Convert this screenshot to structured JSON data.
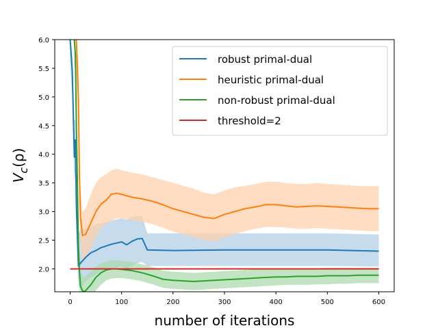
{
  "chart_data": {
    "type": "line",
    "xlabel": "number of iterations",
    "ylabel": "V_c(ρ)",
    "ylabel_main": "V",
    "ylabel_sub": "c",
    "ylabel_arg": "(ρ)",
    "xlim": [
      -30,
      630
    ],
    "ylim": [
      1.6,
      6.0
    ],
    "xticks": [
      0,
      100,
      200,
      300,
      400,
      500,
      600
    ],
    "yticks": [
      2.0,
      2.5,
      3.0,
      3.5,
      4.0,
      4.5,
      5.0,
      5.5,
      6.0
    ],
    "xtick_labels": [
      "0",
      "100",
      "200",
      "300",
      "400",
      "500",
      "600"
    ],
    "ytick_labels": [
      "2.0",
      "2.5",
      "3.0",
      "3.5",
      "4.0",
      "4.5",
      "5.0",
      "5.5",
      "6.0"
    ],
    "grid": false,
    "legend_position": "top-right",
    "series": [
      {
        "name": "robust primal-dual",
        "color": "#1f77b4",
        "band_color": "#aecde6",
        "x": [
          0,
          4,
          8,
          10,
          12,
          16,
          20,
          30,
          40,
          50,
          60,
          70,
          80,
          90,
          100,
          110,
          120,
          130,
          140,
          150,
          200,
          300,
          400,
          500,
          600
        ],
        "y": [
          6.0,
          5.45,
          3.95,
          4.25,
          3.1,
          2.05,
          2.1,
          2.2,
          2.28,
          2.32,
          2.37,
          2.4,
          2.43,
          2.45,
          2.47,
          2.42,
          2.48,
          2.52,
          2.53,
          2.33,
          2.32,
          2.33,
          2.33,
          2.33,
          2.31
        ],
        "band_upper": [
          6.0,
          5.8,
          4.6,
          4.6,
          3.8,
          2.6,
          2.7,
          2.7,
          2.75,
          2.78,
          2.8,
          2.82,
          2.85,
          2.86,
          2.88,
          2.86,
          2.9,
          2.92,
          2.92,
          2.62,
          2.62,
          2.62,
          2.62,
          2.62,
          2.6
        ],
        "band_lower": [
          5.6,
          5.0,
          3.5,
          3.7,
          2.6,
          1.7,
          1.65,
          1.78,
          1.85,
          1.9,
          1.95,
          1.98,
          2.0,
          2.02,
          2.04,
          2.0,
          2.05,
          2.1,
          2.12,
          2.05,
          2.05,
          2.05,
          2.05,
          2.05,
          2.04
        ]
      },
      {
        "name": "heuristic primal-dual",
        "color": "#ff7f0e",
        "band_color": "#ffcfa8",
        "x": [
          12,
          16,
          18,
          20,
          24,
          30,
          40,
          50,
          60,
          70,
          80,
          90,
          100,
          120,
          140,
          160,
          180,
          200,
          220,
          240,
          260,
          280,
          300,
          320,
          340,
          360,
          380,
          400,
          420,
          440,
          460,
          480,
          500,
          520,
          540,
          560,
          580,
          600
        ],
        "y": [
          6.0,
          4.95,
          3.6,
          2.9,
          2.58,
          2.6,
          2.8,
          3.0,
          3.13,
          3.2,
          3.3,
          3.32,
          3.3,
          3.25,
          3.22,
          3.18,
          3.12,
          3.05,
          3.0,
          2.95,
          2.9,
          2.88,
          2.95,
          3.0,
          3.05,
          3.08,
          3.12,
          3.12,
          3.1,
          3.08,
          3.09,
          3.1,
          3.09,
          3.08,
          3.07,
          3.06,
          3.05,
          3.05
        ],
        "band_upper": [
          6.0,
          5.6,
          4.3,
          3.4,
          3.0,
          3.05,
          3.3,
          3.5,
          3.6,
          3.65,
          3.72,
          3.75,
          3.72,
          3.68,
          3.65,
          3.6,
          3.55,
          3.5,
          3.45,
          3.4,
          3.33,
          3.3,
          3.37,
          3.42,
          3.45,
          3.48,
          3.52,
          3.52,
          3.5,
          3.48,
          3.48,
          3.5,
          3.48,
          3.47,
          3.46,
          3.45,
          3.44,
          3.45
        ],
        "band_lower": [
          5.4,
          4.3,
          3.0,
          2.45,
          2.15,
          2.2,
          2.35,
          2.55,
          2.7,
          2.78,
          2.85,
          2.88,
          2.88,
          2.85,
          2.82,
          2.78,
          2.72,
          2.65,
          2.6,
          2.55,
          2.5,
          2.48,
          2.55,
          2.6,
          2.66,
          2.7,
          2.73,
          2.73,
          2.72,
          2.7,
          2.7,
          2.71,
          2.7,
          2.69,
          2.68,
          2.67,
          2.66,
          2.66
        ]
      },
      {
        "name": "non-robust primal-dual",
        "color": "#2ca02c",
        "band_color": "#aad9aa",
        "x": [
          8,
          10,
          12,
          14,
          16,
          18,
          20,
          25,
          30,
          40,
          50,
          60,
          70,
          80,
          90,
          100,
          120,
          140,
          160,
          180,
          200,
          220,
          240,
          260,
          280,
          300,
          320,
          340,
          360,
          380,
          400,
          420,
          440,
          460,
          480,
          500,
          520,
          540,
          560,
          580,
          600
        ],
        "y": [
          6.0,
          5.75,
          4.5,
          3.5,
          2.4,
          1.95,
          1.7,
          1.6,
          1.62,
          1.72,
          1.85,
          1.93,
          1.98,
          2.0,
          2.0,
          1.99,
          1.97,
          1.93,
          1.88,
          1.82,
          1.8,
          1.79,
          1.78,
          1.79,
          1.8,
          1.81,
          1.82,
          1.83,
          1.84,
          1.85,
          1.86,
          1.86,
          1.87,
          1.87,
          1.87,
          1.88,
          1.88,
          1.88,
          1.89,
          1.89,
          1.89
        ],
        "band_upper": [
          6.0,
          6.0,
          4.9,
          3.9,
          2.8,
          2.25,
          2.0,
          1.85,
          1.88,
          1.95,
          2.05,
          2.1,
          2.13,
          2.15,
          2.15,
          2.14,
          2.12,
          2.08,
          2.03,
          1.97,
          1.95,
          1.94,
          1.93,
          1.94,
          1.95,
          1.96,
          1.97,
          1.98,
          1.99,
          2.0,
          2.0,
          2.0,
          2.01,
          2.01,
          2.01,
          2.02,
          2.02,
          2.02,
          2.02,
          2.02,
          2.02
        ],
        "band_lower": [
          5.6,
          5.3,
          4.1,
          3.1,
          2.0,
          1.65,
          1.45,
          1.4,
          1.4,
          1.5,
          1.62,
          1.72,
          1.8,
          1.83,
          1.84,
          1.84,
          1.82,
          1.78,
          1.73,
          1.67,
          1.65,
          1.64,
          1.63,
          1.64,
          1.65,
          1.66,
          1.67,
          1.68,
          1.69,
          1.7,
          1.71,
          1.72,
          1.72,
          1.72,
          1.73,
          1.73,
          1.74,
          1.74,
          1.75,
          1.75,
          1.75
        ]
      },
      {
        "name": "threshold=2",
        "color": "#d62728",
        "x": [
          0,
          600
        ],
        "y": [
          2.0,
          2.0
        ]
      }
    ]
  }
}
